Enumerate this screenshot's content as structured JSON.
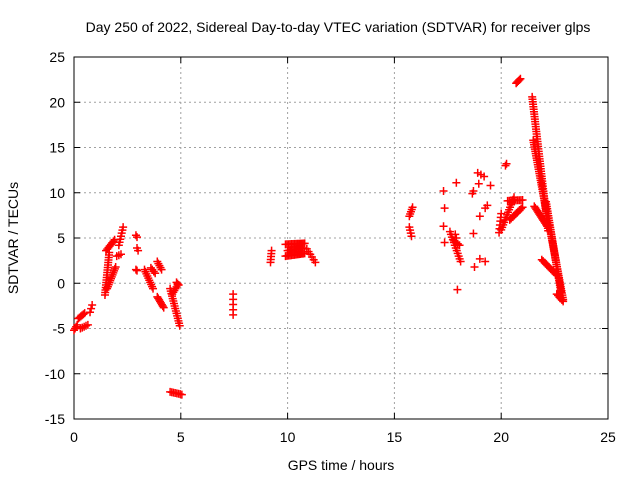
{
  "chart_data": {
    "type": "scatter",
    "title": "Day 250 of 2022, Sidereal Day-to-day VTEC variation (SDTVAR) for receiver glps",
    "xlabel": "GPS time / hours",
    "ylabel": "SDTVAR / TECUs",
    "xlim": [
      0,
      25
    ],
    "ylim": [
      -15,
      25
    ],
    "xticks": [
      0,
      5,
      10,
      15,
      20,
      25
    ],
    "yticks": [
      -15,
      -10,
      -5,
      0,
      5,
      10,
      15,
      20,
      25
    ],
    "xtick_labels": [
      "0",
      "5",
      "10",
      "15",
      "20",
      "25"
    ],
    "ytick_labels": [
      "-15",
      "-10",
      "-5",
      "0",
      "5",
      "10",
      "15",
      "20",
      "25"
    ],
    "grid": true,
    "marker": "plus",
    "color": "#ff0000",
    "segments": [
      {
        "x0": 0.0,
        "y0": -5.2,
        "x1": 0.15,
        "y1": -4.6,
        "n": 4
      },
      {
        "x0": 0.2,
        "y0": -3.9,
        "x1": 0.5,
        "y1": -3.3,
        "n": 6
      },
      {
        "x0": 0.3,
        "y0": -5.0,
        "x1": 0.65,
        "y1": -4.6,
        "n": 5
      },
      {
        "x0": 0.75,
        "y0": -3.2,
        "x1": 0.85,
        "y1": -2.4,
        "n": 3
      },
      {
        "x0": 1.45,
        "y0": -1.3,
        "x1": 1.65,
        "y1": 3.4,
        "n": 18
      },
      {
        "x0": 1.5,
        "y0": 3.6,
        "x1": 1.9,
        "y1": 4.8,
        "n": 8
      },
      {
        "x0": 1.55,
        "y0": -0.6,
        "x1": 1.95,
        "y1": 1.8,
        "n": 12
      },
      {
        "x0": 2.0,
        "y0": 3.0,
        "x1": 2.2,
        "y1": 3.2,
        "n": 3
      },
      {
        "x0": 2.1,
        "y0": 4.2,
        "x1": 2.3,
        "y1": 6.2,
        "n": 7
      },
      {
        "x0": 2.9,
        "y0": 1.5,
        "x1": 2.95,
        "y1": 1.4,
        "n": 2
      },
      {
        "x0": 2.9,
        "y0": 5.3,
        "x1": 2.95,
        "y1": 5.1,
        "n": 2
      },
      {
        "x0": 2.95,
        "y0": 3.9,
        "x1": 3.0,
        "y1": 3.6,
        "n": 2
      },
      {
        "x0": 3.3,
        "y0": 1.5,
        "x1": 3.7,
        "y1": -0.6,
        "n": 10
      },
      {
        "x0": 3.6,
        "y0": 1.7,
        "x1": 3.8,
        "y1": 1.1,
        "n": 4
      },
      {
        "x0": 3.9,
        "y0": 2.4,
        "x1": 4.1,
        "y1": 1.5,
        "n": 5
      },
      {
        "x0": 3.9,
        "y0": -1.5,
        "x1": 4.2,
        "y1": -2.7,
        "n": 8
      },
      {
        "x0": 4.5,
        "y0": -0.6,
        "x1": 4.95,
        "y1": -4.7,
        "n": 16
      },
      {
        "x0": 4.6,
        "y0": -1.2,
        "x1": 4.85,
        "y1": -0.2,
        "n": 6
      },
      {
        "x0": 4.8,
        "y0": 0.1,
        "x1": 4.9,
        "y1": -0.2,
        "n": 3
      },
      {
        "x0": 4.5,
        "y0": -12.0,
        "x1": 5.05,
        "y1": -12.3,
        "n": 8
      },
      {
        "x0": 7.45,
        "y0": -1.2,
        "x1": 7.45,
        "y1": -3.5,
        "n": 5
      },
      {
        "x0": 9.2,
        "y0": 2.3,
        "x1": 9.25,
        "y1": 3.6,
        "n": 5
      },
      {
        "x0": 9.9,
        "y0": 3.0,
        "x1": 10.8,
        "y1": 3.3,
        "n": 14
      },
      {
        "x0": 9.9,
        "y0": 4.3,
        "x1": 10.8,
        "y1": 4.4,
        "n": 14
      },
      {
        "x0": 10.0,
        "y0": 3.6,
        "x1": 10.7,
        "y1": 3.9,
        "n": 12
      },
      {
        "x0": 10.9,
        "y0": 3.8,
        "x1": 11.3,
        "y1": 2.3,
        "n": 6
      },
      {
        "x0": 15.7,
        "y0": 6.2,
        "x1": 15.8,
        "y1": 5.2,
        "n": 4
      },
      {
        "x0": 15.7,
        "y0": 7.4,
        "x1": 15.85,
        "y1": 8.4,
        "n": 5
      },
      {
        "x0": 17.3,
        "y0": 10.2,
        "x1": 17.3,
        "y1": 10.2,
        "n": 1
      },
      {
        "x0": 17.3,
        "y0": 6.3,
        "x1": 17.3,
        "y1": 6.3,
        "n": 1
      },
      {
        "x0": 17.35,
        "y0": 8.3,
        "x1": 17.35,
        "y1": 8.3,
        "n": 1
      },
      {
        "x0": 17.35,
        "y0": 4.5,
        "x1": 17.35,
        "y1": 4.5,
        "n": 1
      },
      {
        "x0": 17.6,
        "y0": 5.7,
        "x1": 18.1,
        "y1": 2.4,
        "n": 12
      },
      {
        "x0": 17.8,
        "y0": 4.7,
        "x1": 18.05,
        "y1": 4.2,
        "n": 4
      },
      {
        "x0": 17.85,
        "y0": 5.4,
        "x1": 17.9,
        "y1": 5.0,
        "n": 2
      },
      {
        "x0": 17.9,
        "y0": 11.1,
        "x1": 17.9,
        "y1": 11.1,
        "n": 1
      },
      {
        "x0": 17.95,
        "y0": -0.7,
        "x1": 17.95,
        "y1": -0.7,
        "n": 1
      },
      {
        "x0": 18.65,
        "y0": 9.9,
        "x1": 18.7,
        "y1": 10.2,
        "n": 2
      },
      {
        "x0": 18.7,
        "y0": 5.5,
        "x1": 18.7,
        "y1": 5.5,
        "n": 1
      },
      {
        "x0": 18.75,
        "y0": 1.8,
        "x1": 18.75,
        "y1": 1.8,
        "n": 1
      },
      {
        "x0": 18.9,
        "y0": 12.2,
        "x1": 19.2,
        "y1": 11.8,
        "n": 3
      },
      {
        "x0": 18.95,
        "y0": 11.0,
        "x1": 18.95,
        "y1": 11.0,
        "n": 1
      },
      {
        "x0": 19.0,
        "y0": 7.4,
        "x1": 19.0,
        "y1": 7.4,
        "n": 1
      },
      {
        "x0": 19.0,
        "y0": 2.7,
        "x1": 19.25,
        "y1": 2.4,
        "n": 2
      },
      {
        "x0": 19.25,
        "y0": 8.3,
        "x1": 19.35,
        "y1": 8.6,
        "n": 2
      },
      {
        "x0": 19.5,
        "y0": 10.8,
        "x1": 19.5,
        "y1": 10.8,
        "n": 1
      },
      {
        "x0": 19.9,
        "y0": 5.6,
        "x1": 20.0,
        "y1": 7.7,
        "n": 6
      },
      {
        "x0": 20.0,
        "y0": 5.9,
        "x1": 20.6,
        "y1": 9.5,
        "n": 14
      },
      {
        "x0": 20.3,
        "y0": 9.1,
        "x1": 21.0,
        "y1": 9.2,
        "n": 10
      },
      {
        "x0": 20.4,
        "y0": 7.0,
        "x1": 21.0,
        "y1": 8.4,
        "n": 10
      },
      {
        "x0": 20.2,
        "y0": 13.0,
        "x1": 20.25,
        "y1": 13.2,
        "n": 2
      },
      {
        "x0": 20.7,
        "y0": 22.1,
        "x1": 20.9,
        "y1": 22.6,
        "n": 5
      },
      {
        "x0": 21.45,
        "y0": 20.6,
        "x1": 22.2,
        "y1": 5.8,
        "n": 55
      },
      {
        "x0": 21.5,
        "y0": 15.8,
        "x1": 22.25,
        "y1": 6.2,
        "n": 40
      },
      {
        "x0": 21.55,
        "y0": 8.5,
        "x1": 22.15,
        "y1": 6.3,
        "n": 14
      },
      {
        "x0": 22.1,
        "y0": 9.0,
        "x1": 22.8,
        "y1": -1.0,
        "n": 40
      },
      {
        "x0": 22.25,
        "y0": 6.4,
        "x1": 22.9,
        "y1": -1.8,
        "n": 35
      },
      {
        "x0": 21.9,
        "y0": 2.6,
        "x1": 22.6,
        "y1": 0.9,
        "n": 12
      },
      {
        "x0": 22.6,
        "y0": -1.2,
        "x1": 22.9,
        "y1": -2.0,
        "n": 6
      }
    ]
  }
}
